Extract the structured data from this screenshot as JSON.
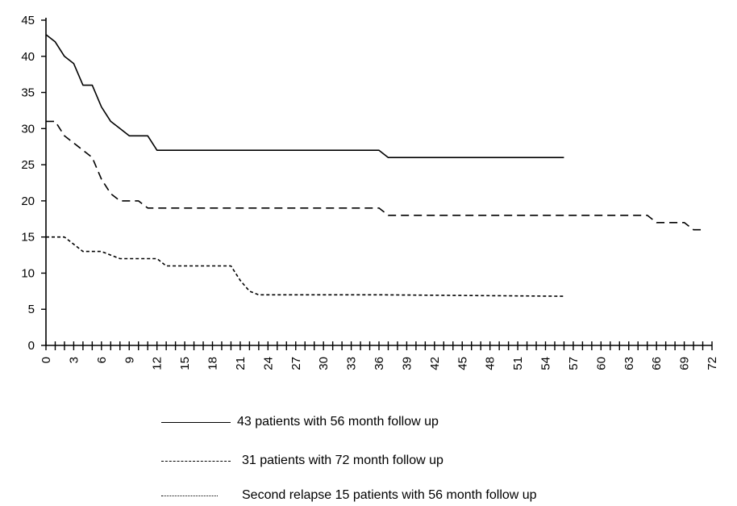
{
  "chart_data": {
    "type": "line",
    "title": "",
    "xlabel": "",
    "ylabel": "",
    "xlim": [
      0,
      72
    ],
    "ylim": [
      0,
      45
    ],
    "x_tick_labels": [
      "0",
      "3",
      "6",
      "9",
      "12",
      "15",
      "18",
      "21",
      "24",
      "27",
      "30",
      "33",
      "36",
      "39",
      "42",
      "45",
      "48",
      "51",
      "54",
      "57",
      "60",
      "63",
      "66",
      "69",
      "72"
    ],
    "y_tick_labels": [
      "0",
      "5",
      "10",
      "15",
      "20",
      "25",
      "30",
      "35",
      "40",
      "45"
    ],
    "grid": false,
    "series": [
      {
        "name": "43 patients with 56 month follow up",
        "line_style": "solid",
        "x": [
          0,
          1,
          2,
          3,
          4,
          5,
          6,
          7,
          8,
          9,
          10,
          11,
          12,
          24,
          36,
          37,
          56
        ],
        "y": [
          43,
          42,
          40,
          39,
          36,
          36,
          33,
          31,
          30,
          29,
          29,
          29,
          27,
          27,
          27,
          26,
          26
        ]
      },
      {
        "name": "31 patients with 72 month follow up",
        "line_style": "dashed",
        "x": [
          0,
          1,
          2,
          3,
          4,
          5,
          6,
          7,
          8,
          9,
          10,
          11,
          12,
          24,
          36,
          37,
          48,
          65,
          66,
          69,
          70,
          71
        ],
        "y": [
          31,
          31,
          29,
          28,
          27,
          26,
          23,
          21,
          20,
          20,
          20,
          19,
          19,
          19,
          19,
          18,
          18,
          18,
          17,
          17,
          16,
          16
        ]
      },
      {
        "name": "Second relapse 15 patients with 56 month follow up",
        "line_style": "dotted",
        "x": [
          0,
          1,
          2,
          3,
          4,
          5,
          6,
          7,
          8,
          9,
          10,
          11,
          12,
          13,
          17,
          20,
          21,
          22,
          23,
          36,
          56
        ],
        "y": [
          15,
          15,
          15,
          14,
          13,
          13,
          13,
          12.5,
          12,
          12,
          12,
          12,
          12,
          11,
          11,
          11,
          9,
          7.5,
          7,
          7,
          6.8
        ]
      }
    ]
  },
  "colors": {
    "line": "#000000",
    "background": "#ffffff"
  }
}
